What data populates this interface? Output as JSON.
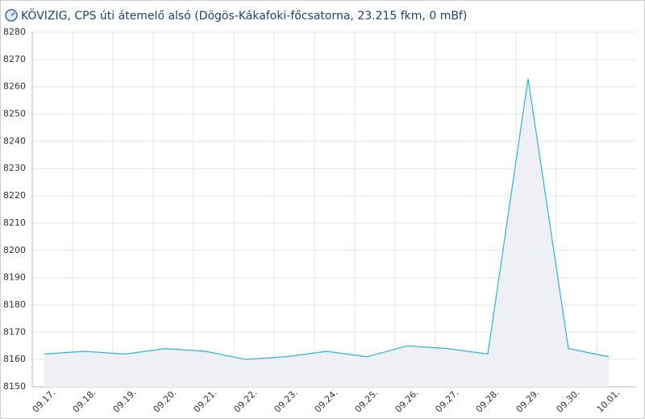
{
  "chart_data": {
    "type": "area",
    "title": "KÖVIZIG, CPS úti átemelő alsó (Dögös-Kákafoki-főcsatorna, 23.215 fkm, 0 mBf)",
    "categories": [
      "09.17.",
      "09.18.",
      "09.19.",
      "09.20.",
      "09.21.",
      "09.22.",
      "09.23.",
      "09.24.",
      "09.25.",
      "09.26.",
      "09.27.",
      "09.28.",
      "09.29.",
      "09.30.",
      "10.01."
    ],
    "values": [
      8162,
      8163,
      8162,
      8164,
      8163,
      8160,
      8161,
      8163,
      8161,
      8165,
      8164,
      8162,
      8263,
      8164,
      8161
    ],
    "color": "#2bb5d8",
    "ylim": [
      8150,
      8280
    ],
    "yticks": [
      8150,
      8160,
      8170,
      8180,
      8190,
      8200,
      8210,
      8220,
      8230,
      8240,
      8250,
      8260,
      8270,
      8280
    ],
    "grid": true
  }
}
